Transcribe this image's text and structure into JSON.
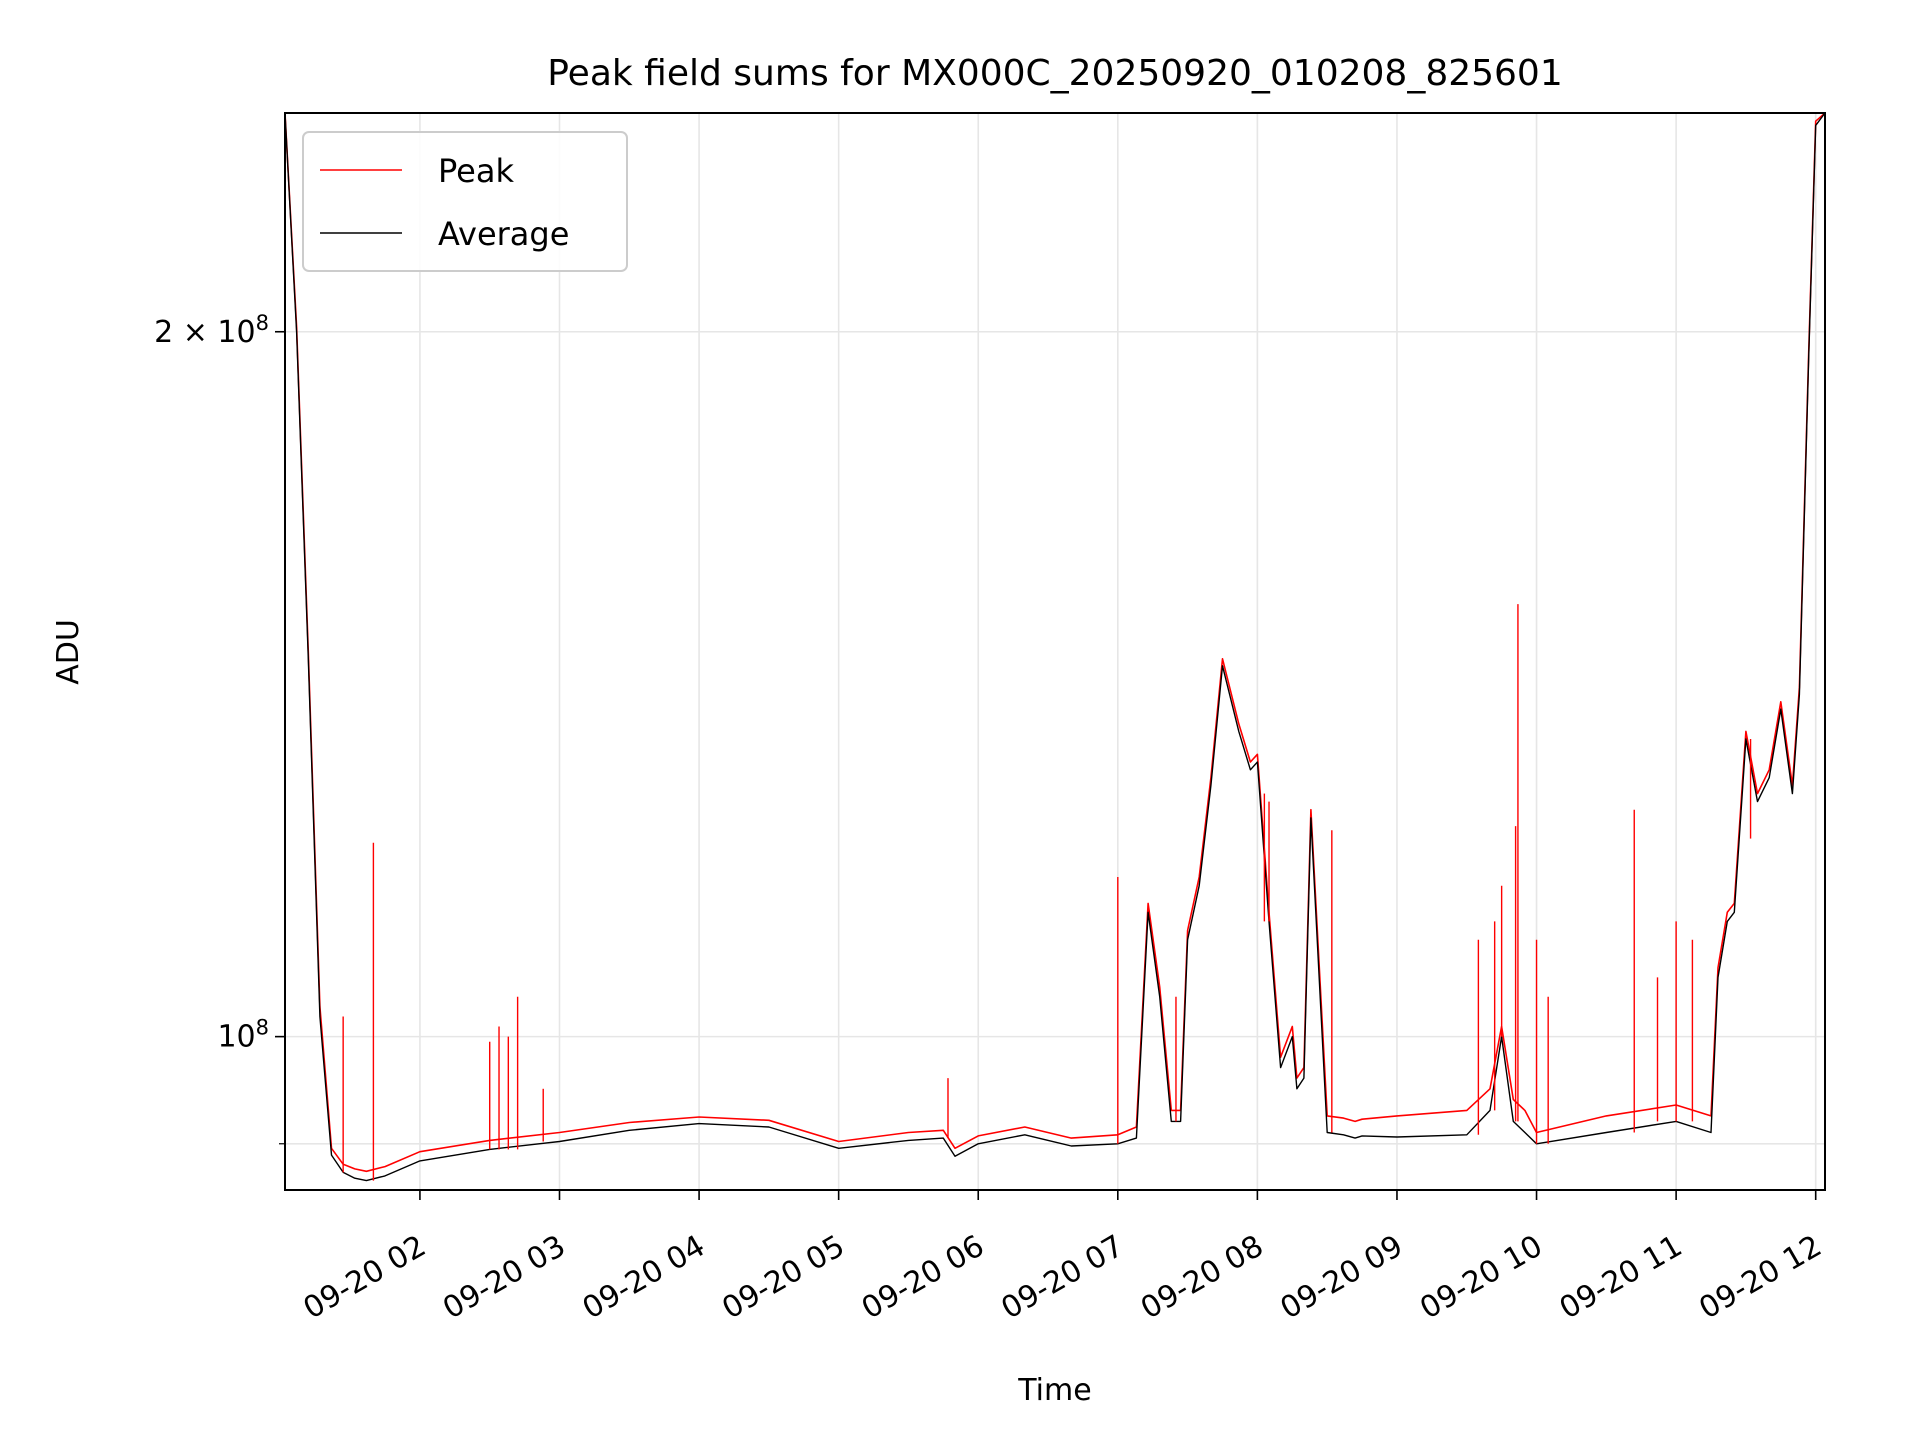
{
  "chart_data": {
    "type": "line",
    "title": "Peak field sums for MX000C_20250920_010208_825601",
    "xlabel": "Time",
    "ylabel": "ADU",
    "yscale": "log",
    "xlim": [
      "2025-09-20 01:02",
      "2025-09-20 12:04"
    ],
    "ylim": [
      86000000,
      248000000
    ],
    "grid": true,
    "legend_position": "upper-left",
    "x_ticks": [
      {
        "value": "2025-09-20 02:00",
        "label": "09-20 02"
      },
      {
        "value": "2025-09-20 03:00",
        "label": "09-20 03"
      },
      {
        "value": "2025-09-20 04:00",
        "label": "09-20 04"
      },
      {
        "value": "2025-09-20 05:00",
        "label": "09-20 05"
      },
      {
        "value": "2025-09-20 06:00",
        "label": "09-20 06"
      },
      {
        "value": "2025-09-20 07:00",
        "label": "09-20 07"
      },
      {
        "value": "2025-09-20 08:00",
        "label": "09-20 08"
      },
      {
        "value": "2025-09-20 09:00",
        "label": "09-20 09"
      },
      {
        "value": "2025-09-20 10:00",
        "label": "09-20 10"
      },
      {
        "value": "2025-09-20 11:00",
        "label": "09-20 11"
      },
      {
        "value": "2025-09-20 12:00",
        "label": "09-20 12"
      }
    ],
    "y_ticks": [
      {
        "value": 100000000,
        "base": "10",
        "exp": "8"
      },
      {
        "value": 200000000,
        "base": "2 × 10",
        "exp": "8"
      }
    ],
    "series": [
      {
        "name": "Average",
        "color": "#000000",
        "x": [
          "2025-09-20 01:02",
          "2025-09-20 01:07",
          "2025-09-20 01:12",
          "2025-09-20 01:17",
          "2025-09-20 01:22",
          "2025-09-20 01:27",
          "2025-09-20 01:32",
          "2025-09-20 01:37",
          "2025-09-20 01:45",
          "2025-09-20 02:00",
          "2025-09-20 02:30",
          "2025-09-20 03:00",
          "2025-09-20 03:30",
          "2025-09-20 04:00",
          "2025-09-20 04:30",
          "2025-09-20 05:00",
          "2025-09-20 05:30",
          "2025-09-20 05:45",
          "2025-09-20 05:50",
          "2025-09-20 06:00",
          "2025-09-20 06:20",
          "2025-09-20 06:40",
          "2025-09-20 07:00",
          "2025-09-20 07:08",
          "2025-09-20 07:13",
          "2025-09-20 07:18",
          "2025-09-20 07:23",
          "2025-09-20 07:27",
          "2025-09-20 07:30",
          "2025-09-20 07:35",
          "2025-09-20 07:40",
          "2025-09-20 07:45",
          "2025-09-20 07:52",
          "2025-09-20 07:57",
          "2025-09-20 08:00",
          "2025-09-20 08:05",
          "2025-09-20 08:10",
          "2025-09-20 08:15",
          "2025-09-20 08:17",
          "2025-09-20 08:20",
          "2025-09-20 08:23",
          "2025-09-20 08:30",
          "2025-09-20 08:37",
          "2025-09-20 08:42",
          "2025-09-20 08:45",
          "2025-09-20 09:00",
          "2025-09-20 09:30",
          "2025-09-20 09:40",
          "2025-09-20 09:45",
          "2025-09-20 09:50",
          "2025-09-20 09:55",
          "2025-09-20 10:00",
          "2025-09-20 10:30",
          "2025-09-20 11:00",
          "2025-09-20 11:15",
          "2025-09-20 11:18",
          "2025-09-20 11:22",
          "2025-09-20 11:25",
          "2025-09-20 11:30",
          "2025-09-20 11:35",
          "2025-09-20 11:40",
          "2025-09-20 11:45",
          "2025-09-20 11:50",
          "2025-09-20 11:53",
          "2025-09-20 11:57",
          "2025-09-20 12:00",
          "2025-09-20 12:04"
        ],
        "y": [
          248000000,
          200000000,
          145000000,
          102000000,
          89000000,
          87500000,
          87000000,
          86800000,
          87200000,
          88500000,
          89500000,
          90200000,
          91200000,
          91800000,
          91500000,
          89600000,
          90300000,
          90500000,
          88900000,
          90000000,
          90800000,
          89800000,
          90000000,
          90500000,
          113000000,
          104000000,
          92000000,
          92000000,
          110000000,
          116000000,
          128000000,
          144000000,
          135000000,
          130000000,
          131000000,
          112000000,
          97000000,
          100000000,
          95000000,
          96000000,
          124000000,
          91000000,
          90800000,
          90500000,
          90700000,
          90600000,
          90800000,
          93000000,
          100000000,
          92000000,
          91000000,
          90000000,
          91000000,
          92000000,
          91000000,
          106000000,
          112000000,
          113000000,
          134000000,
          126000000,
          129000000,
          138000000,
          127000000,
          140000000,
          195000000,
          245000000,
          248000000
        ]
      },
      {
        "name": "Peak",
        "color": "#ff0000",
        "x": [
          "2025-09-20 01:02",
          "2025-09-20 01:07",
          "2025-09-20 01:12",
          "2025-09-20 01:17",
          "2025-09-20 01:22",
          "2025-09-20 01:27",
          "2025-09-20 01:32",
          "2025-09-20 01:37",
          "2025-09-20 01:45",
          "2025-09-20 02:00",
          "2025-09-20 02:30",
          "2025-09-20 03:00",
          "2025-09-20 03:30",
          "2025-09-20 04:00",
          "2025-09-20 04:30",
          "2025-09-20 05:00",
          "2025-09-20 05:30",
          "2025-09-20 05:45",
          "2025-09-20 05:50",
          "2025-09-20 06:00",
          "2025-09-20 06:20",
          "2025-09-20 06:40",
          "2025-09-20 07:00",
          "2025-09-20 07:08",
          "2025-09-20 07:13",
          "2025-09-20 07:18",
          "2025-09-20 07:23",
          "2025-09-20 07:27",
          "2025-09-20 07:30",
          "2025-09-20 07:35",
          "2025-09-20 07:40",
          "2025-09-20 07:45",
          "2025-09-20 07:52",
          "2025-09-20 07:57",
          "2025-09-20 08:00",
          "2025-09-20 08:05",
          "2025-09-20 08:10",
          "2025-09-20 08:15",
          "2025-09-20 08:17",
          "2025-09-20 08:20",
          "2025-09-20 08:23",
          "2025-09-20 08:30",
          "2025-09-20 08:37",
          "2025-09-20 08:42",
          "2025-09-20 08:45",
          "2025-09-20 09:00",
          "2025-09-20 09:30",
          "2025-09-20 09:40",
          "2025-09-20 09:45",
          "2025-09-20 09:50",
          "2025-09-20 09:55",
          "2025-09-20 10:00",
          "2025-09-20 10:30",
          "2025-09-20 11:00",
          "2025-09-20 11:15",
          "2025-09-20 11:18",
          "2025-09-20 11:22",
          "2025-09-20 11:25",
          "2025-09-20 11:30",
          "2025-09-20 11:35",
          "2025-09-20 11:40",
          "2025-09-20 11:45",
          "2025-09-20 11:50",
          "2025-09-20 11:53",
          "2025-09-20 11:57",
          "2025-09-20 12:00",
          "2025-09-20 12:04"
        ],
        "y": [
          248000000,
          201000000,
          146000000,
          103000000,
          89600000,
          88200000,
          87800000,
          87600000,
          88000000,
          89300000,
          90300000,
          91000000,
          91900000,
          92400000,
          92100000,
          90200000,
          91000000,
          91200000,
          89600000,
          90700000,
          91500000,
          90500000,
          90800000,
          91500000,
          114000000,
          105000000,
          93000000,
          93000000,
          111000000,
          117000000,
          129000000,
          145000000,
          136000000,
          131000000,
          132000000,
          113000000,
          98000000,
          101000000,
          96000000,
          97000000,
          125000000,
          92500000,
          92300000,
          92000000,
          92200000,
          92500000,
          93000000,
          95000000,
          101000000,
          94000000,
          93000000,
          91000000,
          92500000,
          93500000,
          92500000,
          107000000,
          113000000,
          114000000,
          135000000,
          127000000,
          130000000,
          139000000,
          128000000,
          141000000,
          196000000,
          246000000,
          248000000
        ]
      }
    ],
    "peak_spikes": [
      {
        "x": "2025-09-20 01:40",
        "y": 121000000
      },
      {
        "x": "2025-09-20 01:27",
        "y": 102000000
      },
      {
        "x": "2025-09-20 02:30",
        "y": 99500000
      },
      {
        "x": "2025-09-20 02:34",
        "y": 101000000
      },
      {
        "x": "2025-09-20 02:38",
        "y": 100000000
      },
      {
        "x": "2025-09-20 02:42",
        "y": 104000000
      },
      {
        "x": "2025-09-20 02:53",
        "y": 95000000
      },
      {
        "x": "2025-09-20 05:47",
        "y": 96000000
      },
      {
        "x": "2025-09-20 07:00",
        "y": 117000000
      },
      {
        "x": "2025-09-20 08:05",
        "y": 126000000
      },
      {
        "x": "2025-09-20 08:03",
        "y": 127000000
      },
      {
        "x": "2025-09-20 08:32",
        "y": 122500000
      },
      {
        "x": "2025-09-20 09:45",
        "y": 116000000
      },
      {
        "x": "2025-09-20 09:52",
        "y": 153000000
      },
      {
        "x": "2025-09-20 09:51",
        "y": 123000000
      },
      {
        "x": "2025-09-20 09:42",
        "y": 112000000
      },
      {
        "x": "2025-09-20 09:35",
        "y": 110000000
      },
      {
        "x": "2025-09-20 10:00",
        "y": 110000000
      },
      {
        "x": "2025-09-20 10:05",
        "y": 104000000
      },
      {
        "x": "2025-09-20 10:42",
        "y": 125000000
      },
      {
        "x": "2025-09-20 10:52",
        "y": 106000000
      },
      {
        "x": "2025-09-20 11:00",
        "y": 112000000
      },
      {
        "x": "2025-09-20 11:07",
        "y": 110000000
      },
      {
        "x": "2025-09-20 11:32",
        "y": 121500000
      },
      {
        "x": "2025-09-20 07:25",
        "y": 104000000
      },
      {
        "x": "2025-09-20 07:20",
        "y": 104000000
      }
    ]
  }
}
